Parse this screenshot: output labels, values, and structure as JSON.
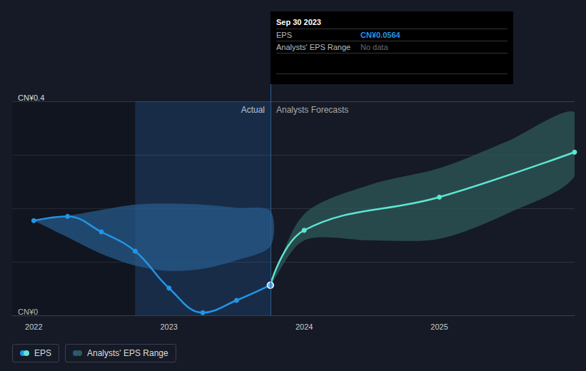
{
  "chart_data": {
    "type": "line",
    "xlim": [
      2021.84,
      2026.0
    ],
    "xticks": [
      2022,
      2023,
      2024,
      2025
    ],
    "ylim": [
      0,
      0.4
    ],
    "yticks": [
      {
        "value": 0,
        "label": "CN¥0"
      },
      {
        "value": 0.4,
        "label": "CN¥0.4"
      }
    ],
    "grid": true,
    "highlight_range": [
      2022.75,
      2023.75
    ],
    "annotations": {
      "actual": "Actual",
      "forecast": "Analysts Forecasts",
      "tooltip": {
        "title": "Sep 30 2023",
        "rows": [
          {
            "label": "EPS",
            "value": "CN¥0.0564"
          },
          {
            "label": "Analysts' EPS Range",
            "value": "No data"
          }
        ]
      }
    },
    "series": [
      {
        "name": "EPS",
        "color": "#2394e6",
        "marker": "circle",
        "x": [
          2022.0,
          2022.25,
          2022.5,
          2022.75,
          2023.0,
          2023.25,
          2023.5,
          2023.75
        ],
        "values": [
          0.177,
          0.185,
          0.156,
          0.12,
          0.051,
          0.005,
          0.028,
          0.0564
        ]
      },
      {
        "name": "EPS",
        "color": "#5ee6d3",
        "marker": "circle",
        "x": [
          2023.75,
          2024.0,
          2025.0,
          2026.0
        ],
        "values": [
          0.0564,
          0.159,
          0.221,
          0.305
        ]
      }
    ],
    "ranges": [
      {
        "name": "Analysts' EPS Range",
        "color": "#265a8a",
        "x": [
          2022.0,
          2022.25,
          2022.5,
          2022.75,
          2023.0,
          2023.25,
          2023.5,
          2023.75
        ],
        "lower": [
          0.177,
          0.146,
          0.115,
          0.093,
          0.083,
          0.087,
          0.103,
          0.129
        ],
        "upper": [
          0.177,
          0.186,
          0.197,
          0.207,
          0.209,
          0.207,
          0.201,
          0.195
        ]
      },
      {
        "name": "Analysts' EPS Range",
        "color": "#2f5a58",
        "x": [
          2023.75,
          2024.0,
          2024.5,
          2025.0,
          2025.5,
          2026.0
        ],
        "lower": [
          0.0564,
          0.14,
          0.14,
          0.143,
          0.19,
          0.26
        ],
        "upper": [
          0.0564,
          0.189,
          0.245,
          0.275,
          0.325,
          0.38
        ]
      }
    ]
  }
}
